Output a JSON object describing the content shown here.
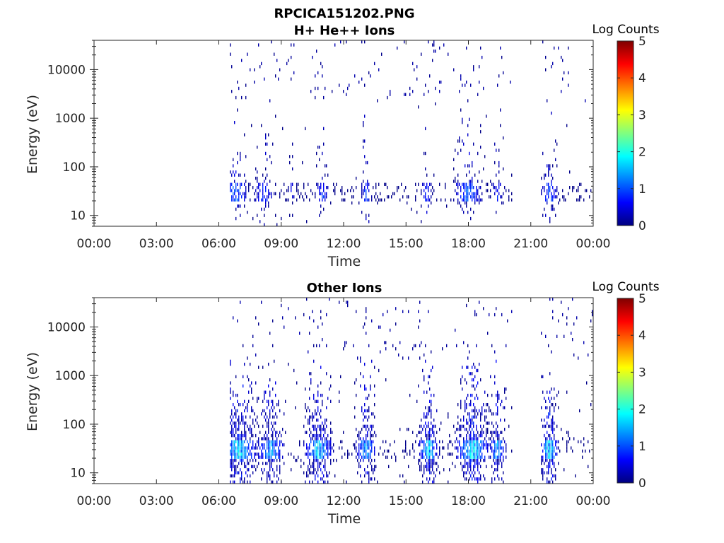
{
  "figure": {
    "title": "RPCICA151202.PNG"
  },
  "colormap": {
    "stops": [
      "#00007f",
      "#0000ff",
      "#00ffff",
      "#ffff00",
      "#ff0000",
      "#7f0000"
    ]
  },
  "chart_data": [
    {
      "type": "heatmap",
      "title": "H+ He++ Ions",
      "xlabel": "Time",
      "ylabel": "Energy (eV)",
      "y_scale": "log",
      "ylim": [
        6,
        40000
      ],
      "xlim": [
        "00:00",
        "24:00"
      ],
      "x_tick_labels": [
        "00:00",
        "03:00",
        "06:00",
        "09:00",
        "12:00",
        "15:00",
        "18:00",
        "21:00",
        "00:00"
      ],
      "x_tick_hours": [
        0,
        3,
        6,
        9,
        12,
        15,
        18,
        21,
        24
      ],
      "y_ticks": [
        10,
        100,
        1000,
        10000
      ],
      "y_tick_labels": [
        "10",
        "100",
        "1000",
        "10000"
      ],
      "colorbar": {
        "label": "Log Counts",
        "min": 0,
        "max": 5,
        "tick_labels": [
          "0",
          "1",
          "2",
          "3",
          "4",
          "5"
        ]
      },
      "data_intervals_hours": [
        [
          6.5,
          20.1
        ],
        [
          21.5,
          24.0
        ]
      ],
      "activity_bursts": [
        {
          "hour": 6.8,
          "width": 0.7,
          "log_counts": 1.2
        },
        {
          "hour": 8.2,
          "width": 0.6,
          "log_counts": 0.9
        },
        {
          "hour": 9.5,
          "width": 0.2,
          "log_counts": 0.6
        },
        {
          "hour": 11.0,
          "width": 0.4,
          "log_counts": 0.9
        },
        {
          "hour": 13.1,
          "width": 0.3,
          "log_counts": 1.0
        },
        {
          "hour": 16.0,
          "width": 0.3,
          "log_counts": 0.9
        },
        {
          "hour": 18.0,
          "width": 0.8,
          "log_counts": 1.2
        },
        {
          "hour": 19.4,
          "width": 0.4,
          "log_counts": 0.8
        },
        {
          "hour": 21.9,
          "width": 0.5,
          "log_counts": 1.1
        }
      ],
      "main_band_eV": [
        20,
        45
      ]
    },
    {
      "type": "heatmap",
      "title": "Other Ions",
      "xlabel": "Time",
      "ylabel": "Energy (eV)",
      "y_scale": "log",
      "ylim": [
        6,
        40000
      ],
      "xlim": [
        "00:00",
        "24:00"
      ],
      "x_tick_labels": [
        "00:00",
        "03:00",
        "06:00",
        "09:00",
        "12:00",
        "15:00",
        "18:00",
        "21:00",
        "00:00"
      ],
      "x_tick_hours": [
        0,
        3,
        6,
        9,
        12,
        15,
        18,
        21,
        24
      ],
      "y_ticks": [
        10,
        100,
        1000,
        10000
      ],
      "y_tick_labels": [
        "10",
        "100",
        "1000",
        "10000"
      ],
      "colorbar": {
        "label": "Log Counts",
        "min": 0,
        "max": 5,
        "tick_labels": [
          "0",
          "1",
          "2",
          "3",
          "4",
          "5"
        ]
      },
      "data_intervals_hours": [
        [
          6.5,
          20.1
        ],
        [
          21.5,
          24.0
        ]
      ],
      "activity_bursts": [
        {
          "hour": 7.0,
          "width": 1.0,
          "log_counts": 1.9
        },
        {
          "hour": 8.5,
          "width": 0.8,
          "log_counts": 1.5
        },
        {
          "hour": 10.8,
          "width": 0.8,
          "log_counts": 1.8
        },
        {
          "hour": 13.1,
          "width": 0.6,
          "log_counts": 1.6
        },
        {
          "hour": 16.1,
          "width": 0.6,
          "log_counts": 1.8
        },
        {
          "hour": 18.2,
          "width": 1.0,
          "log_counts": 1.9
        },
        {
          "hour": 19.4,
          "width": 0.5,
          "log_counts": 1.5
        },
        {
          "hour": 21.9,
          "width": 0.5,
          "log_counts": 1.9
        }
      ],
      "main_band_eV": [
        20,
        50
      ]
    }
  ]
}
